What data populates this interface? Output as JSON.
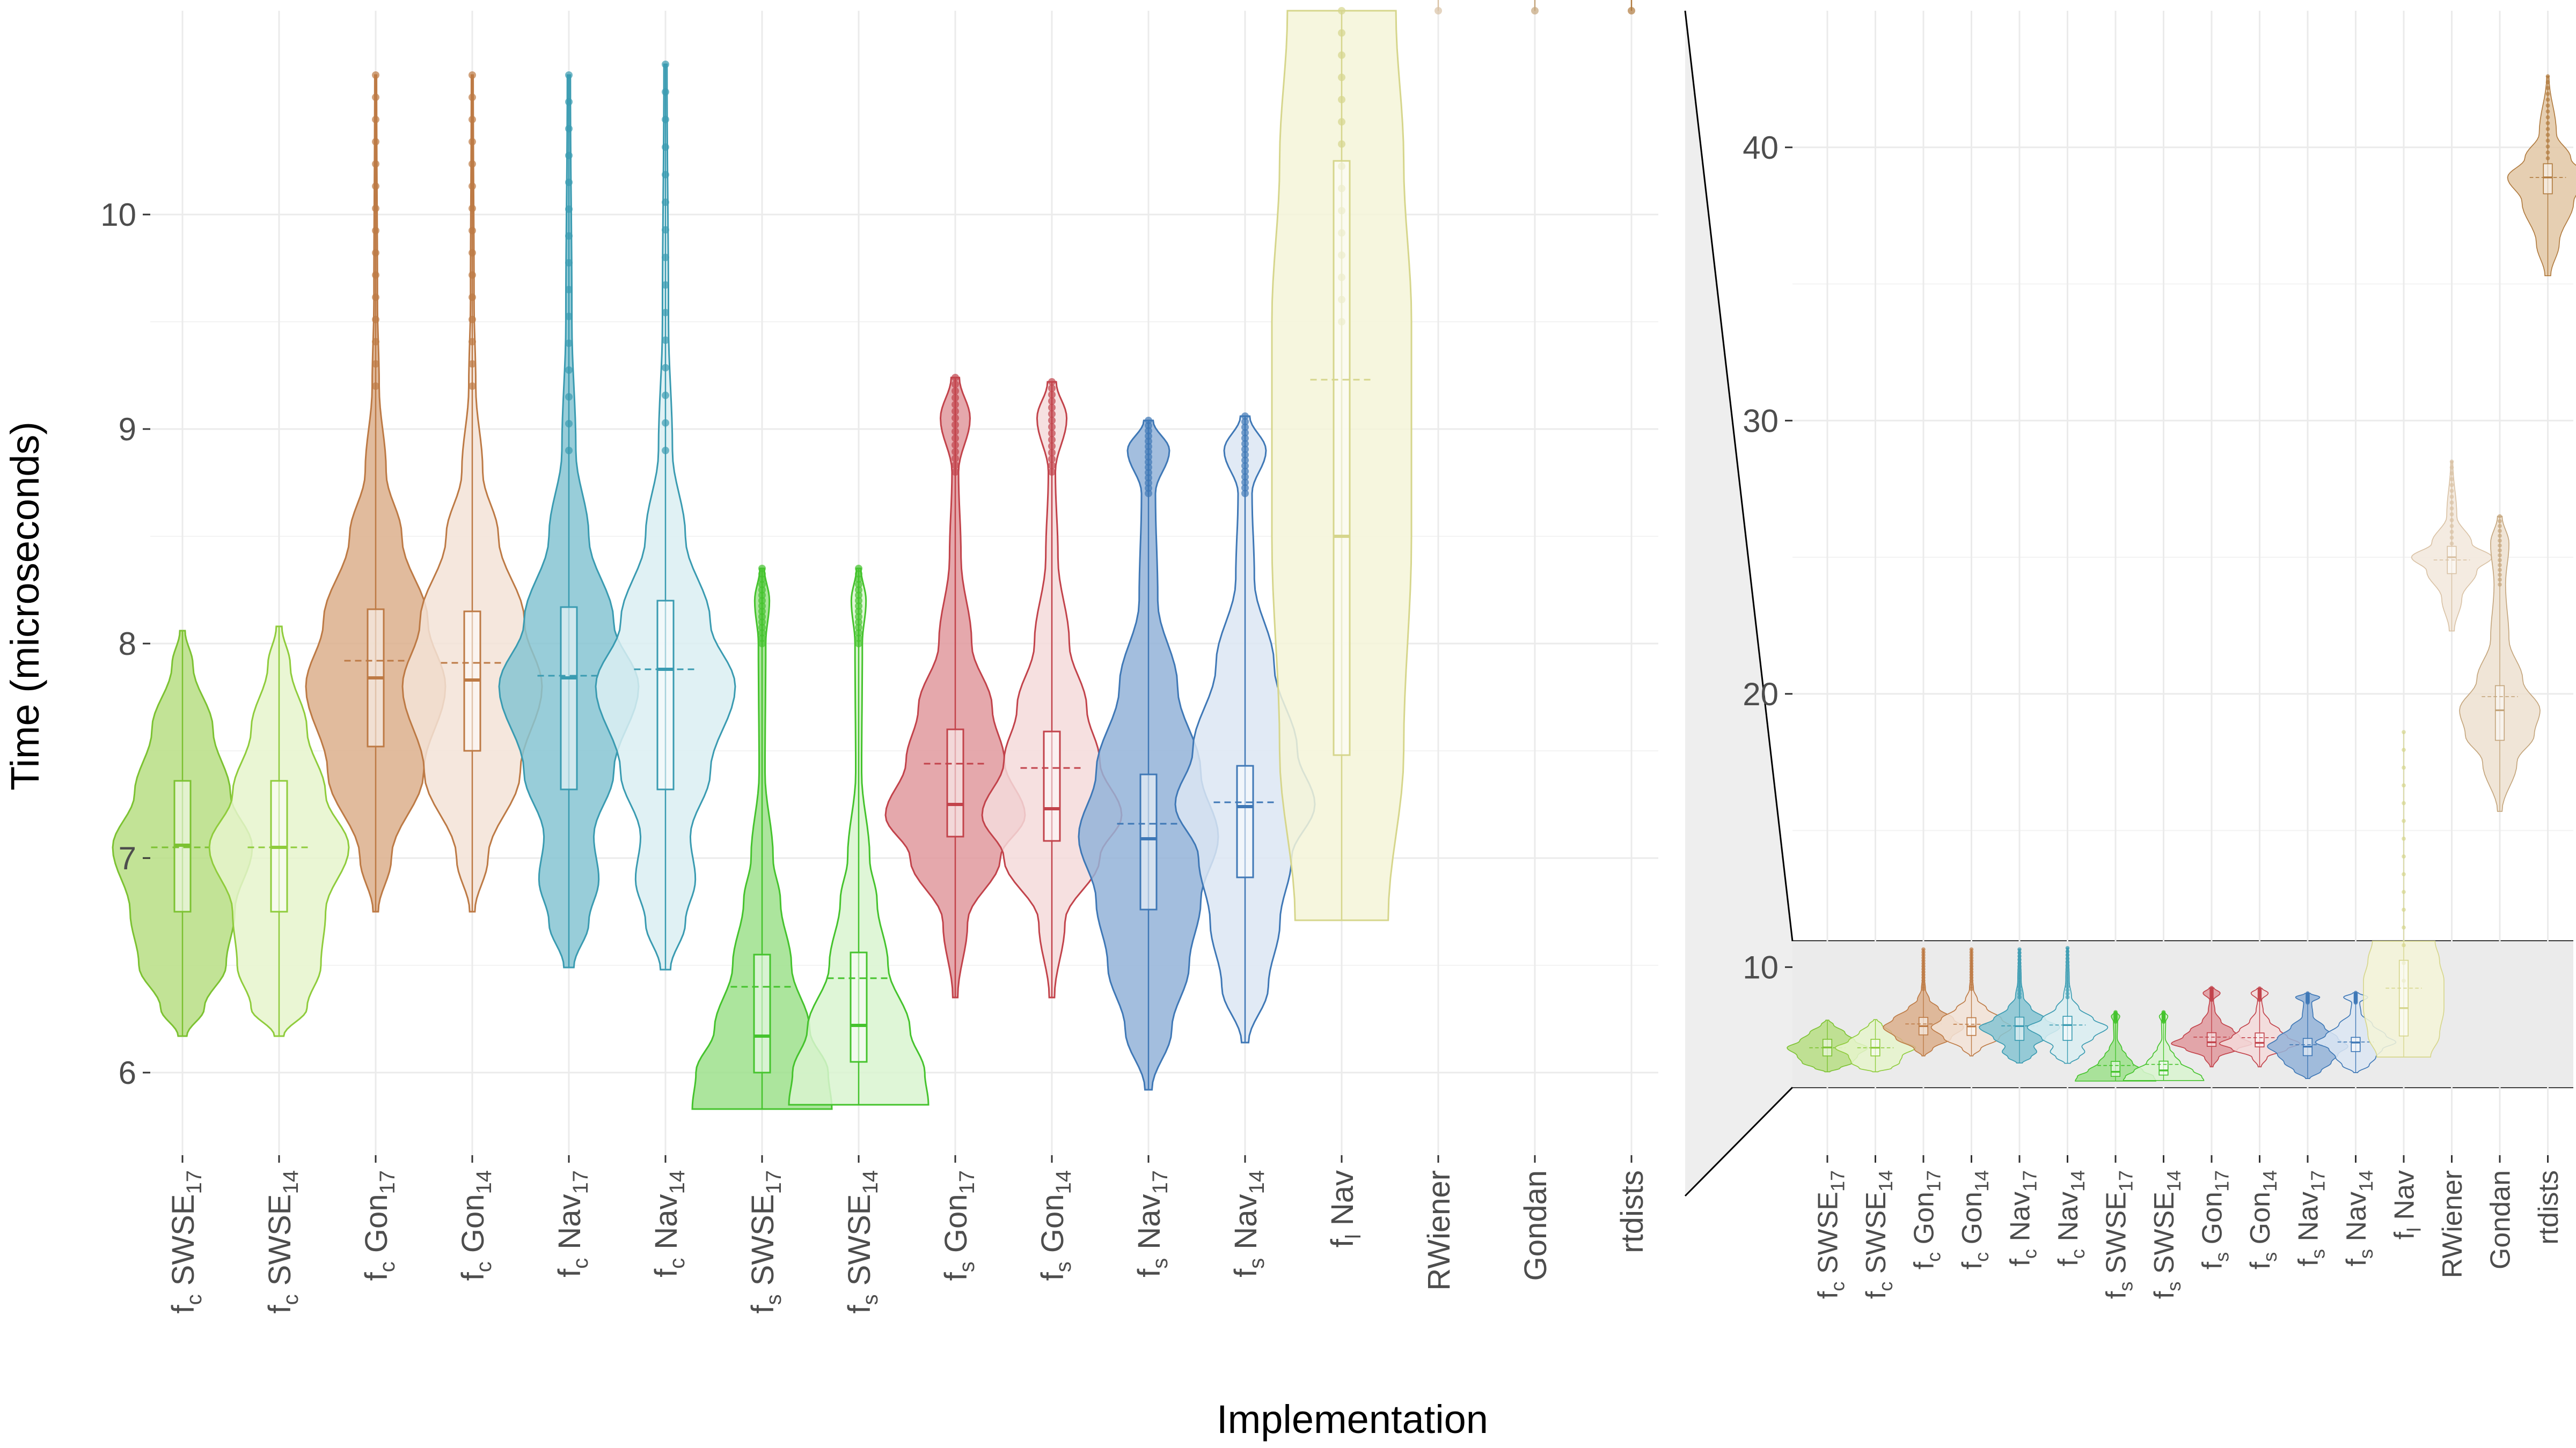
{
  "axis": {
    "ylabel": "Time (microseconds)",
    "xlabel": "Implementation"
  },
  "main_panel": {
    "yticks": [
      6,
      7,
      8,
      9,
      10
    ],
    "ylim": [
      5.6,
      10.95
    ]
  },
  "zoom_panel": {
    "yticks": [
      10,
      20,
      30,
      40
    ],
    "ylim": [
      3.0,
      45.0
    ],
    "highlight_range": [
      5.6,
      10.95
    ],
    "highlight_color": "#ebebeb"
  },
  "chart_data": {
    "type": "violin",
    "categories": [
      {
        "name": "fc SWSE17",
        "base": "f",
        "sub": "c",
        "label": "SWSE",
        "label_sub": "17",
        "color": "#7cc232",
        "fill": "#b7de84"
      },
      {
        "name": "fc SWSE14",
        "base": "f",
        "sub": "c",
        "label": "SWSE",
        "label_sub": "14",
        "color": "#8fcc3c",
        "fill": "#e6f4cc"
      },
      {
        "name": "fc Gon17",
        "base": "f",
        "sub": "c",
        "label": "Gon",
        "label_sub": "17",
        "color": "#bd7a45",
        "fill": "#dcaf8c"
      },
      {
        "name": "fc Gon14",
        "base": "f",
        "sub": "c",
        "label": "Gon",
        "label_sub": "14",
        "color": "#bd7a45",
        "fill": "#f3e3d7"
      },
      {
        "name": "fc Nav17",
        "base": "f",
        "sub": "c",
        "label": "Nav",
        "label_sub": "17",
        "color": "#3a9bb1",
        "fill": "#86c4d2"
      },
      {
        "name": "fc Nav14",
        "base": "f",
        "sub": "c",
        "label": "Nav",
        "label_sub": "14",
        "color": "#3a9bb1",
        "fill": "#dbeef2"
      },
      {
        "name": "fs SWSE17",
        "base": "f",
        "sub": "s",
        "label": "SWSE",
        "label_sub": "17",
        "color": "#45c32d",
        "fill": "#9ee08c"
      },
      {
        "name": "fs SWSE14",
        "base": "f",
        "sub": "s",
        "label": "SWSE",
        "label_sub": "14",
        "color": "#45c32d",
        "fill": "#d9f4d0"
      },
      {
        "name": "fs Gon17",
        "base": "f",
        "sub": "s",
        "label": "Gon",
        "label_sub": "17",
        "color": "#c2434b",
        "fill": "#e0999e"
      },
      {
        "name": "fs Gon14",
        "base": "f",
        "sub": "s",
        "label": "Gon",
        "label_sub": "14",
        "color": "#c2434b",
        "fill": "#f5dadb"
      },
      {
        "name": "fs Nav17",
        "base": "f",
        "sub": "s",
        "label": "Nav",
        "label_sub": "17",
        "color": "#3f78b6",
        "fill": "#93b3d8"
      },
      {
        "name": "fs Nav14",
        "base": "f",
        "sub": "s",
        "label": "Nav",
        "label_sub": "14",
        "color": "#3f78b6",
        "fill": "#dce6f3"
      },
      {
        "name": "fl Nav",
        "base": "f",
        "sub": "l",
        "label": "Nav",
        "label_sub": "",
        "color": "#d6d68c",
        "fill": "#f4f4d8"
      },
      {
        "name": "RWiener",
        "base": "RWiener",
        "sub": "",
        "label": "",
        "label_sub": "",
        "color": "#d9c2a5",
        "fill": "#f2e8dc"
      },
      {
        "name": "Gondan",
        "base": "Gondan",
        "sub": "",
        "label": "",
        "label_sub": "",
        "color": "#c4a57c",
        "fill": "#ede1d0"
      },
      {
        "name": "rtdists",
        "base": "rtdists",
        "sub": "",
        "label": "",
        "label_sub": "",
        "color": "#b07a3e",
        "fill": "#e2c7a5"
      }
    ],
    "series": [
      {
        "name": "fc SWSE17",
        "min": 6.17,
        "max": 8.06,
        "q1": 6.75,
        "median": 7.06,
        "q3": 7.36,
        "mean": 7.05,
        "outliers_max": null,
        "shape": [
          [
            6.17,
            0.05
          ],
          [
            6.3,
            0.25
          ],
          [
            6.5,
            0.5
          ],
          [
            6.75,
            0.6
          ],
          [
            7.05,
            0.8
          ],
          [
            7.3,
            0.55
          ],
          [
            7.6,
            0.35
          ],
          [
            7.9,
            0.12
          ],
          [
            8.06,
            0.03
          ]
        ]
      },
      {
        "name": "fc SWSE14",
        "min": 6.17,
        "max": 8.08,
        "q1": 6.75,
        "median": 7.05,
        "q3": 7.36,
        "mean": 7.05,
        "outliers_max": null,
        "shape": [
          [
            6.17,
            0.05
          ],
          [
            6.3,
            0.3
          ],
          [
            6.5,
            0.45
          ],
          [
            6.75,
            0.5
          ],
          [
            7.05,
            0.75
          ],
          [
            7.3,
            0.5
          ],
          [
            7.6,
            0.3
          ],
          [
            7.9,
            0.12
          ],
          [
            8.08,
            0.03
          ]
        ]
      },
      {
        "name": "fc Gon17",
        "min": 6.75,
        "max": 10.65,
        "q1": 7.52,
        "median": 7.84,
        "q3": 8.16,
        "mean": 7.92,
        "outliers_max": 10.65,
        "shape": [
          [
            6.75,
            0.03
          ],
          [
            7.0,
            0.18
          ],
          [
            7.4,
            0.55
          ],
          [
            7.8,
            0.8
          ],
          [
            8.1,
            0.6
          ],
          [
            8.5,
            0.3
          ],
          [
            8.8,
            0.12
          ],
          [
            9.2,
            0.04
          ],
          [
            9.6,
            0.02
          ],
          [
            10.65,
            0.01
          ]
        ]
      },
      {
        "name": "fc Gon14",
        "min": 6.75,
        "max": 10.65,
        "q1": 7.5,
        "median": 7.83,
        "q3": 8.15,
        "mean": 7.91,
        "outliers_max": 10.65,
        "shape": [
          [
            6.75,
            0.03
          ],
          [
            7.0,
            0.18
          ],
          [
            7.4,
            0.55
          ],
          [
            7.8,
            0.8
          ],
          [
            8.1,
            0.6
          ],
          [
            8.5,
            0.3
          ],
          [
            8.8,
            0.12
          ],
          [
            9.2,
            0.04
          ],
          [
            9.6,
            0.02
          ],
          [
            10.65,
            0.01
          ]
        ]
      },
      {
        "name": "fc Nav17",
        "min": 6.49,
        "max": 10.65,
        "q1": 7.32,
        "median": 7.84,
        "q3": 8.17,
        "mean": 7.85,
        "outliers_max": 10.65,
        "shape": [
          [
            6.49,
            0.05
          ],
          [
            6.7,
            0.2
          ],
          [
            6.9,
            0.3
          ],
          [
            7.1,
            0.25
          ],
          [
            7.4,
            0.45
          ],
          [
            7.8,
            0.7
          ],
          [
            8.1,
            0.45
          ],
          [
            8.5,
            0.2
          ],
          [
            8.9,
            0.07
          ],
          [
            9.5,
            0.03
          ],
          [
            10.65,
            0.015
          ]
        ]
      },
      {
        "name": "fc Nav14",
        "min": 6.48,
        "max": 10.7,
        "q1": 7.32,
        "median": 7.88,
        "q3": 8.2,
        "mean": 7.88,
        "outliers_max": 10.7,
        "shape": [
          [
            6.48,
            0.05
          ],
          [
            6.7,
            0.2
          ],
          [
            6.9,
            0.3
          ],
          [
            7.1,
            0.25
          ],
          [
            7.4,
            0.45
          ],
          [
            7.8,
            0.7
          ],
          [
            8.1,
            0.45
          ],
          [
            8.5,
            0.2
          ],
          [
            8.9,
            0.07
          ],
          [
            9.5,
            0.03
          ],
          [
            10.7,
            0.015
          ]
        ]
      },
      {
        "name": "fs SWSE17",
        "min": 5.83,
        "max": 8.35,
        "q1": 6.0,
        "median": 6.17,
        "q3": 6.55,
        "mean": 6.4,
        "outliers_max": 8.35,
        "shape": [
          [
            5.83,
            0.95
          ],
          [
            6.0,
            0.9
          ],
          [
            6.2,
            0.65
          ],
          [
            6.5,
            0.4
          ],
          [
            6.8,
            0.25
          ],
          [
            7.0,
            0.15
          ],
          [
            7.4,
            0.04
          ],
          [
            8.0,
            0.05
          ],
          [
            8.2,
            0.1
          ],
          [
            8.35,
            0.03
          ]
        ]
      },
      {
        "name": "fs SWSE14",
        "min": 5.85,
        "max": 8.35,
        "q1": 6.05,
        "median": 6.22,
        "q3": 6.56,
        "mean": 6.44,
        "outliers_max": 8.35,
        "shape": [
          [
            5.85,
            0.95
          ],
          [
            6.0,
            0.9
          ],
          [
            6.2,
            0.7
          ],
          [
            6.5,
            0.4
          ],
          [
            6.8,
            0.25
          ],
          [
            7.0,
            0.15
          ],
          [
            7.4,
            0.04
          ],
          [
            8.0,
            0.05
          ],
          [
            8.2,
            0.1
          ],
          [
            8.35,
            0.03
          ]
        ]
      },
      {
        "name": "fs Gon17",
        "min": 6.35,
        "max": 9.24,
        "q1": 7.1,
        "median": 7.25,
        "q3": 7.6,
        "mean": 7.44,
        "outliers_max": 9.24,
        "shape": [
          [
            6.35,
            0.03
          ],
          [
            6.7,
            0.15
          ],
          [
            7.0,
            0.55
          ],
          [
            7.2,
            0.85
          ],
          [
            7.45,
            0.6
          ],
          [
            7.7,
            0.45
          ],
          [
            8.0,
            0.2
          ],
          [
            8.4,
            0.07
          ],
          [
            8.8,
            0.04
          ],
          [
            9.05,
            0.18
          ],
          [
            9.24,
            0.05
          ]
        ]
      },
      {
        "name": "fs Gon14",
        "min": 6.35,
        "max": 9.22,
        "q1": 7.08,
        "median": 7.23,
        "q3": 7.59,
        "mean": 7.42,
        "outliers_max": 9.22,
        "shape": [
          [
            6.35,
            0.03
          ],
          [
            6.7,
            0.15
          ],
          [
            7.0,
            0.55
          ],
          [
            7.2,
            0.8
          ],
          [
            7.45,
            0.55
          ],
          [
            7.7,
            0.4
          ],
          [
            8.0,
            0.2
          ],
          [
            8.4,
            0.07
          ],
          [
            8.8,
            0.04
          ],
          [
            9.05,
            0.17
          ],
          [
            9.22,
            0.05
          ]
        ]
      },
      {
        "name": "fs Nav17",
        "min": 5.92,
        "max": 9.04,
        "q1": 6.76,
        "median": 7.09,
        "q3": 7.39,
        "mean": 7.16,
        "outliers_max": 9.04,
        "shape": [
          [
            5.92,
            0.03
          ],
          [
            6.2,
            0.2
          ],
          [
            6.5,
            0.35
          ],
          [
            6.8,
            0.45
          ],
          [
            7.1,
            0.6
          ],
          [
            7.4,
            0.45
          ],
          [
            7.8,
            0.25
          ],
          [
            8.2,
            0.08
          ],
          [
            8.7,
            0.06
          ],
          [
            8.9,
            0.18
          ],
          [
            9.04,
            0.04
          ]
        ]
      },
      {
        "name": "fs Nav14",
        "min": 6.14,
        "max": 9.06,
        "q1": 6.91,
        "median": 7.24,
        "q3": 7.43,
        "mean": 7.26,
        "outliers_max": 9.06,
        "shape": [
          [
            6.14,
            0.03
          ],
          [
            6.4,
            0.2
          ],
          [
            6.7,
            0.3
          ],
          [
            7.0,
            0.4
          ],
          [
            7.25,
            0.6
          ],
          [
            7.5,
            0.45
          ],
          [
            7.9,
            0.25
          ],
          [
            8.3,
            0.08
          ],
          [
            8.7,
            0.06
          ],
          [
            8.9,
            0.18
          ],
          [
            9.06,
            0.04
          ]
        ]
      },
      {
        "name": "fl Nav",
        "min": 6.71,
        "max": 18.6,
        "q1": 7.48,
        "median": 8.5,
        "q3": 10.25,
        "mean": 9.23,
        "outliers_max": 18.6,
        "shape": [
          [
            6.71,
            0.06
          ],
          [
            7.5,
            0.08
          ],
          [
            8.5,
            0.09
          ],
          [
            9.5,
            0.09
          ],
          [
            10.25,
            0.08
          ],
          [
            10.95,
            0.07
          ]
        ]
      },
      {
        "name": "RWiener",
        "min": 22.3,
        "max": 28.5,
        "q1": 24.4,
        "median": 25.0,
        "q3": 25.4,
        "mean": 24.9,
        "outliers_max": 28.5,
        "shape": [
          [
            22.3,
            0.05
          ],
          [
            23.5,
            0.2
          ],
          [
            24.5,
            0.5
          ],
          [
            25.0,
            0.8
          ],
          [
            25.5,
            0.4
          ],
          [
            26.5,
            0.1
          ],
          [
            28.5,
            0.02
          ]
        ]
      },
      {
        "name": "Gondan",
        "min": 15.7,
        "max": 26.5,
        "q1": 18.3,
        "median": 19.4,
        "q3": 20.3,
        "mean": 19.9,
        "outliers_max": 26.5,
        "shape": [
          [
            15.7,
            0.02
          ],
          [
            17.5,
            0.15
          ],
          [
            18.5,
            0.3
          ],
          [
            19.4,
            0.35
          ],
          [
            20.5,
            0.2
          ],
          [
            22.0,
            0.08
          ],
          [
            24.0,
            0.05
          ],
          [
            25.5,
            0.08
          ],
          [
            26.5,
            0.02
          ]
        ]
      },
      {
        "name": "rtdists",
        "min": 35.3,
        "max": 42.6,
        "q1": 38.3,
        "median": 38.9,
        "q3": 39.4,
        "mean": 38.9,
        "outliers_max": 42.6,
        "shape": [
          [
            35.3,
            0.05
          ],
          [
            36.5,
            0.2
          ],
          [
            38.0,
            0.45
          ],
          [
            38.9,
            0.7
          ],
          [
            39.6,
            0.4
          ],
          [
            40.5,
            0.15
          ],
          [
            42.6,
            0.02
          ]
        ]
      }
    ]
  }
}
